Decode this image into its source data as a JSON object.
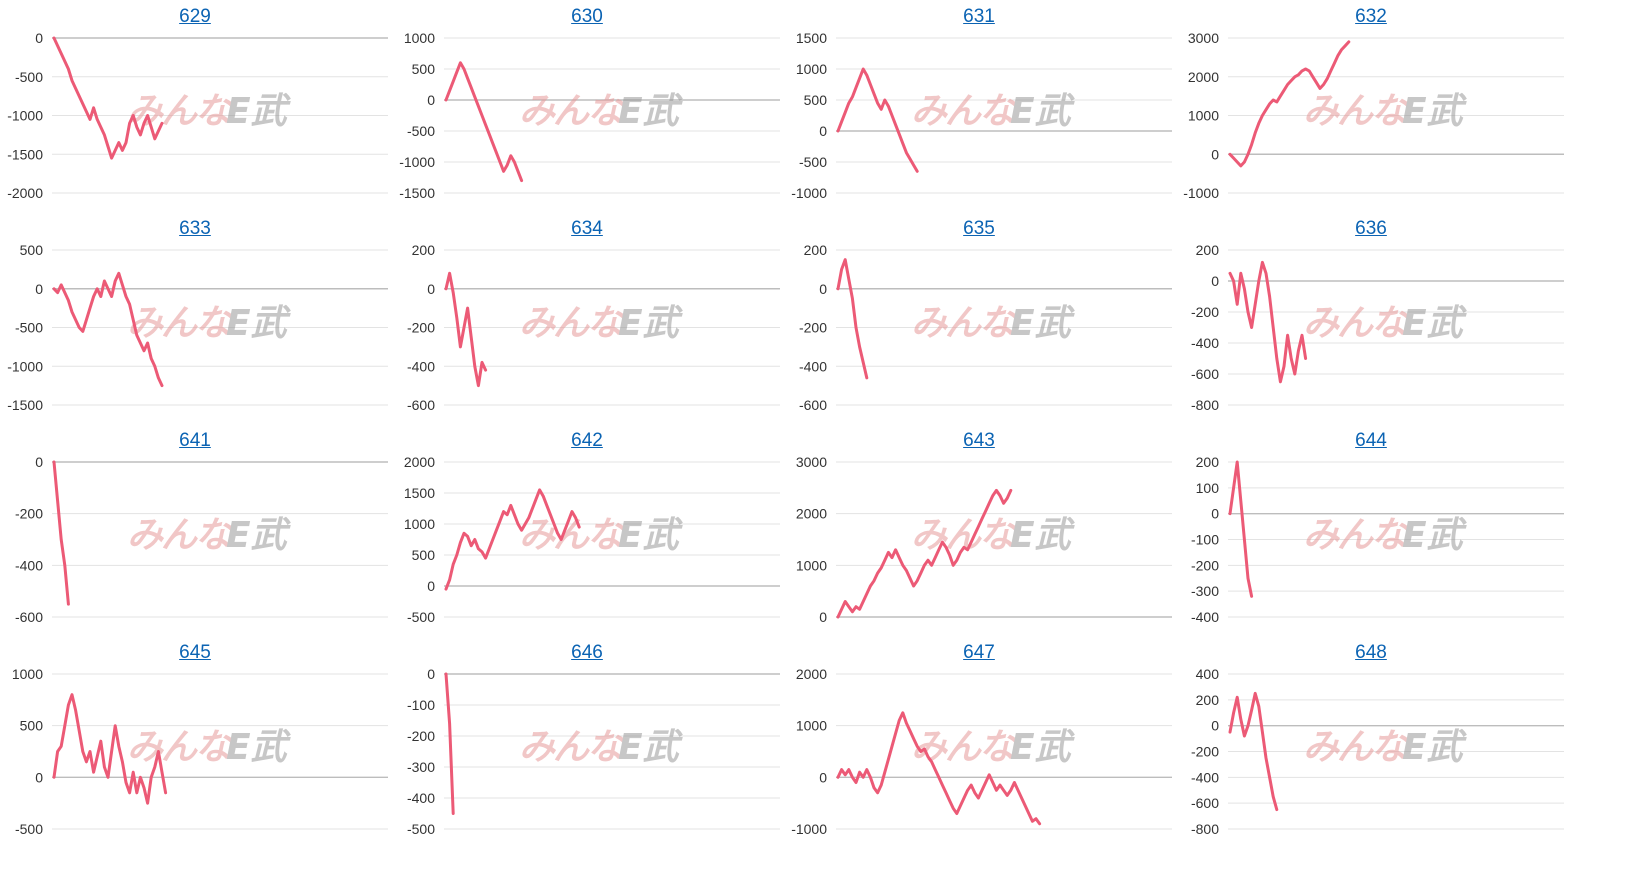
{
  "colors": {
    "series": "#ec5a76",
    "grid": "#e3e3e3",
    "zero": "#bdbdbd",
    "title": "#0b63b3"
  },
  "watermark": {
    "left": "みんな",
    "right": "E武"
  },
  "chart_data": [
    {
      "type": "line",
      "title": "629",
      "ylim": [
        -2000,
        0
      ],
      "yticks": [
        0,
        -500,
        -1000,
        -1500,
        -2000
      ],
      "values": [
        0,
        -100,
        -200,
        -300,
        -400,
        -550,
        -650,
        -750,
        -850,
        -950,
        -1050,
        -900,
        -1050,
        -1150,
        -1250,
        -1400,
        -1550,
        -1450,
        -1350,
        -1450,
        -1350,
        -1100,
        -1000,
        -1150,
        -1250,
        -1100,
        -1000,
        -1150,
        -1300,
        -1200,
        -1100
      ]
    },
    {
      "type": "line",
      "title": "630",
      "ylim": [
        -1500,
        1000
      ],
      "yticks": [
        1000,
        500,
        0,
        -500,
        -1000,
        -1500
      ],
      "values": [
        0,
        150,
        300,
        450,
        600,
        500,
        350,
        200,
        50,
        -100,
        -250,
        -400,
        -550,
        -700,
        -850,
        -1000,
        -1150,
        -1050,
        -900,
        -1000,
        -1150,
        -1300
      ]
    },
    {
      "type": "line",
      "title": "631",
      "ylim": [
        -1000,
        1500
      ],
      "yticks": [
        1500,
        1000,
        500,
        0,
        -500,
        -1000
      ],
      "values": [
        0,
        150,
        300,
        450,
        550,
        700,
        850,
        1000,
        900,
        750,
        600,
        450,
        350,
        500,
        400,
        250,
        100,
        -50,
        -200,
        -350,
        -450,
        -550,
        -650
      ]
    },
    {
      "type": "line",
      "title": "632",
      "ylim": [
        -1000,
        3000
      ],
      "yticks": [
        3000,
        2000,
        1000,
        0,
        -1000
      ],
      "values": [
        0,
        -100,
        -200,
        -300,
        -200,
        0,
        250,
        550,
        800,
        1000,
        1150,
        1300,
        1400,
        1350,
        1500,
        1650,
        1800,
        1900,
        2000,
        2050,
        2150,
        2200,
        2150,
        2000,
        1850,
        1700,
        1800,
        1950,
        2150,
        2350,
        2550,
        2700,
        2800,
        2900
      ]
    },
    {
      "type": "line",
      "title": "633",
      "ylim": [
        -1500,
        500
      ],
      "yticks": [
        500,
        0,
        -500,
        -1000,
        -1500
      ],
      "values": [
        0,
        -50,
        50,
        -50,
        -150,
        -300,
        -400,
        -500,
        -550,
        -400,
        -250,
        -100,
        0,
        -100,
        100,
        0,
        -100,
        100,
        200,
        50,
        -100,
        -200,
        -400,
        -600,
        -700,
        -800,
        -700,
        -900,
        -1000,
        -1150,
        -1250
      ]
    },
    {
      "type": "line",
      "title": "634",
      "ylim": [
        -600,
        200
      ],
      "yticks": [
        200,
        0,
        -200,
        -400,
        -600
      ],
      "values": [
        0,
        80,
        -20,
        -150,
        -300,
        -200,
        -100,
        -250,
        -400,
        -500,
        -380,
        -420
      ]
    },
    {
      "type": "line",
      "title": "635",
      "ylim": [
        -600,
        200
      ],
      "yticks": [
        200,
        0,
        -200,
        -400,
        -600
      ],
      "values": [
        0,
        100,
        150,
        50,
        -50,
        -200,
        -300,
        -380,
        -460
      ]
    },
    {
      "type": "line",
      "title": "636",
      "ylim": [
        -800,
        200
      ],
      "yticks": [
        200,
        0,
        -200,
        -400,
        -600,
        -800
      ],
      "values": [
        50,
        0,
        -150,
        50,
        -50,
        -200,
        -300,
        -150,
        0,
        120,
        50,
        -100,
        -300,
        -500,
        -650,
        -550,
        -350,
        -500,
        -600,
        -450,
        -350,
        -500
      ]
    },
    {
      "type": "line",
      "title": "641",
      "ylim": [
        -600,
        0
      ],
      "yticks": [
        0,
        -200,
        -400,
        -600
      ],
      "values": [
        0,
        -150,
        -300,
        -400,
        -550
      ]
    },
    {
      "type": "line",
      "title": "642",
      "ylim": [
        -500,
        2000
      ],
      "yticks": [
        2000,
        1500,
        1000,
        500,
        0,
        -500
      ],
      "values": [
        -50,
        100,
        350,
        500,
        700,
        850,
        800,
        650,
        750,
        600,
        550,
        450,
        600,
        750,
        900,
        1050,
        1200,
        1150,
        1300,
        1150,
        1000,
        900,
        1000,
        1100,
        1250,
        1400,
        1550,
        1450,
        1300,
        1150,
        1000,
        850,
        750,
        900,
        1050,
        1200,
        1100,
        950
      ]
    },
    {
      "type": "line",
      "title": "643",
      "ylim": [
        0,
        3000
      ],
      "yticks": [
        3000,
        2000,
        1000,
        0
      ],
      "values": [
        0,
        150,
        300,
        200,
        100,
        200,
        150,
        300,
        450,
        600,
        700,
        850,
        950,
        1100,
        1250,
        1150,
        1300,
        1150,
        1000,
        900,
        750,
        600,
        700,
        850,
        1000,
        1100,
        1000,
        1150,
        1300,
        1450,
        1350,
        1200,
        1000,
        1100,
        1250,
        1350,
        1300,
        1450,
        1600,
        1750,
        1900,
        2050,
        2200,
        2350,
        2450,
        2350,
        2200,
        2300,
        2450
      ]
    },
    {
      "type": "line",
      "title": "644",
      "ylim": [
        -400,
        200
      ],
      "yticks": [
        200,
        100,
        0,
        -100,
        -200,
        -300,
        -400
      ],
      "values": [
        0,
        100,
        200,
        50,
        -100,
        -250,
        -320
      ]
    },
    {
      "type": "line",
      "title": "645",
      "ylim": [
        -500,
        1000
      ],
      "yticks": [
        1000,
        500,
        0,
        -500
      ],
      "values": [
        0,
        250,
        300,
        500,
        700,
        800,
        650,
        450,
        250,
        150,
        250,
        50,
        200,
        350,
        100,
        0,
        250,
        500,
        300,
        150,
        -50,
        -150,
        50,
        -150,
        0,
        -100,
        -250,
        0,
        100,
        250,
        50,
        -150
      ]
    },
    {
      "type": "line",
      "title": "646",
      "ylim": [
        -500,
        0
      ],
      "yticks": [
        0,
        -100,
        -200,
        -300,
        -400,
        -500
      ],
      "values": [
        0,
        -160,
        -450
      ]
    },
    {
      "type": "line",
      "title": "647",
      "ylim": [
        -1000,
        2000
      ],
      "yticks": [
        2000,
        1000,
        0,
        -1000
      ],
      "values": [
        0,
        150,
        50,
        150,
        0,
        -100,
        100,
        0,
        150,
        0,
        -200,
        -300,
        -150,
        100,
        350,
        600,
        850,
        1100,
        1250,
        1050,
        900,
        750,
        600,
        500,
        550,
        400,
        300,
        150,
        0,
        -150,
        -300,
        -450,
        -600,
        -700,
        -550,
        -400,
        -250,
        -150,
        -300,
        -400,
        -250,
        -100,
        50,
        -100,
        -250,
        -150,
        -250,
        -350,
        -250,
        -100,
        -250,
        -400,
        -550,
        -700,
        -850,
        -800,
        -900
      ]
    },
    {
      "type": "line",
      "title": "648",
      "ylim": [
        -800,
        400
      ],
      "yticks": [
        400,
        200,
        0,
        -200,
        -400,
        -600,
        -800
      ],
      "values": [
        -50,
        100,
        220,
        50,
        -80,
        0,
        120,
        250,
        150,
        -50,
        -250,
        -400,
        -550,
        -650
      ]
    }
  ]
}
